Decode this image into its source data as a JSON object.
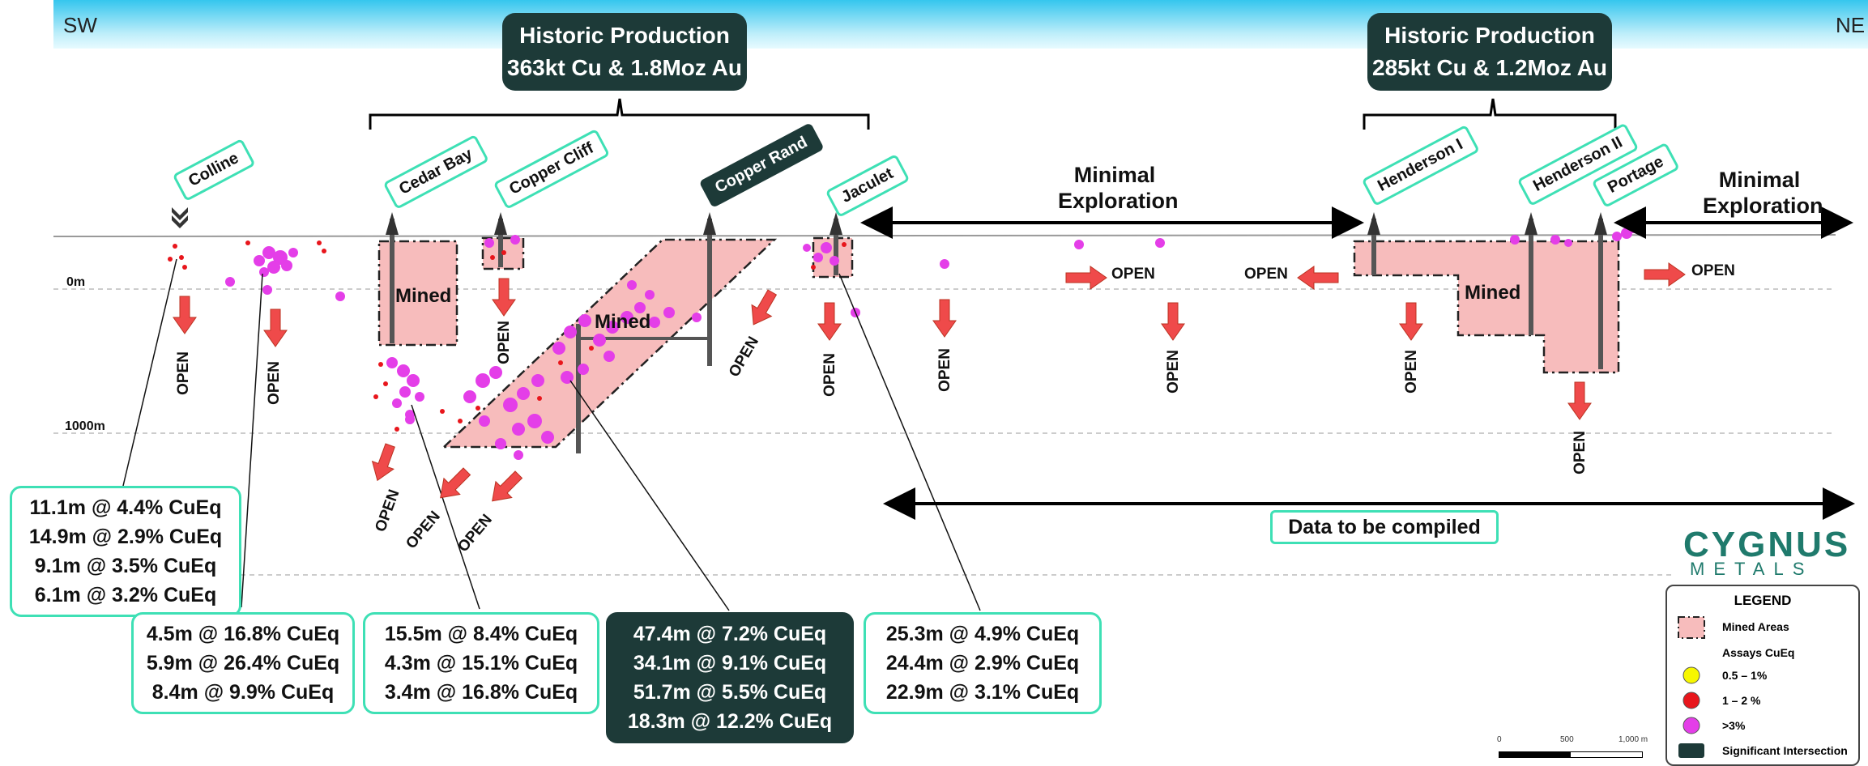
{
  "corners": {
    "left": "SW",
    "right": "NE"
  },
  "historic_production": [
    {
      "title": "Historic Production",
      "value": "363kt Cu & 1.8Moz Au"
    },
    {
      "title": "Historic Production",
      "value": "285kt Cu & 1.2Moz Au"
    }
  ],
  "deposits": [
    "Colline",
    "Cedar Bay",
    "Copper Cliff",
    "Copper Rand",
    "Jaculet",
    "Henderson I",
    "Henderson II",
    "Portage"
  ],
  "minimal_exploration": {
    "line1": "Minimal",
    "line2": "Exploration"
  },
  "depths": {
    "top": "0m",
    "deep": "1000m"
  },
  "mined_label": "Mined",
  "open_label": "OPEN",
  "data_to_compile": "Data to be compiled",
  "intersections": [
    [
      "11.1m @ 4.4% CuEq",
      "14.9m @ 2.9% CuEq",
      "9.1m @ 3.5% CuEq",
      "6.1m @ 3.2% CuEq"
    ],
    [
      "4.5m @ 16.8% CuEq",
      "5.9m @ 26.4% CuEq",
      "8.4m @ 9.9% CuEq"
    ],
    [
      "15.5m @ 8.4% CuEq",
      "4.3m @ 15.1% CuEq",
      "3.4m @ 16.8% CuEq"
    ],
    [
      "47.4m @ 7.2% CuEq",
      "34.1m @ 9.1% CuEq",
      "51.7m @ 5.5% CuEq",
      "18.3m @ 12.2% CuEq"
    ],
    [
      "25.3m @ 4.9% CuEq",
      "24.4m @ 2.9% CuEq",
      "22.9m @ 3.1% CuEq"
    ]
  ],
  "logo": {
    "line1": "CYGNUS",
    "line2": "METALS"
  },
  "legend": {
    "title": "LEGEND",
    "mined_areas": "Mined Areas",
    "assays_header": "Assays CuEq",
    "assay_low": "0.5 – 1%",
    "assay_mid": "1 – 2 %",
    "assay_high": ">3%",
    "significant": "Significant Intersection"
  },
  "scale_bar": {
    "zero": "0",
    "mid": "500",
    "end": "1,000 m"
  },
  "colors": {
    "dark_teal": "#1d3a38",
    "accent_green": "#3ee0b5",
    "mined_fill": "#f7bcbc",
    "assay_high": "#e43ee8",
    "assay_mid": "#e8161c",
    "assay_low": "#f7f700",
    "arrow_red": "#ef4a4a"
  }
}
